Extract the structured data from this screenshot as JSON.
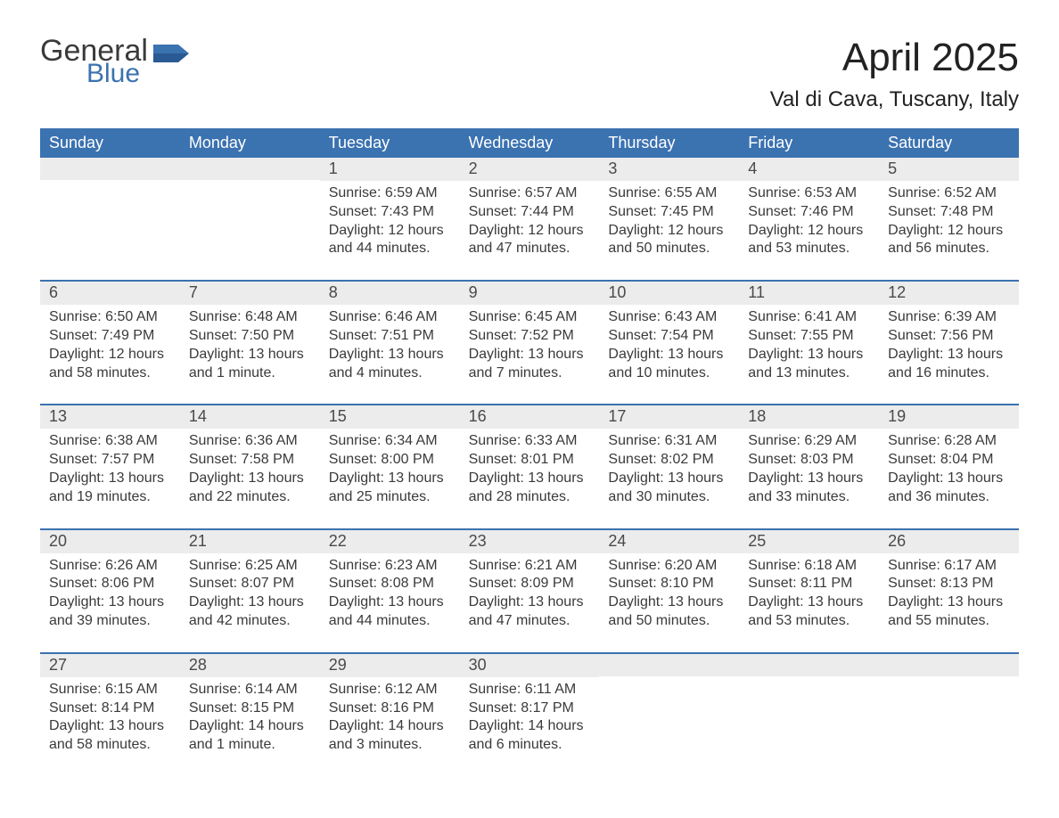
{
  "logo": {
    "line1": "General",
    "line2": "Blue"
  },
  "title": "April 2025",
  "location": "Val di Cava, Tuscany, Italy",
  "colors": {
    "header_bg": "#3b72b0",
    "header_text": "#ffffff",
    "daynum_bg": "#ececec",
    "text": "#3a3a3a",
    "border": "#3b72b0",
    "background": "#ffffff"
  },
  "weekdays": [
    "Sunday",
    "Monday",
    "Tuesday",
    "Wednesday",
    "Thursday",
    "Friday",
    "Saturday"
  ],
  "weeks": [
    [
      {
        "n": "",
        "sunrise": "",
        "sunset": "",
        "daylight": ""
      },
      {
        "n": "",
        "sunrise": "",
        "sunset": "",
        "daylight": ""
      },
      {
        "n": "1",
        "sunrise": "Sunrise: 6:59 AM",
        "sunset": "Sunset: 7:43 PM",
        "daylight": "Daylight: 12 hours and 44 minutes."
      },
      {
        "n": "2",
        "sunrise": "Sunrise: 6:57 AM",
        "sunset": "Sunset: 7:44 PM",
        "daylight": "Daylight: 12 hours and 47 minutes."
      },
      {
        "n": "3",
        "sunrise": "Sunrise: 6:55 AM",
        "sunset": "Sunset: 7:45 PM",
        "daylight": "Daylight: 12 hours and 50 minutes."
      },
      {
        "n": "4",
        "sunrise": "Sunrise: 6:53 AM",
        "sunset": "Sunset: 7:46 PM",
        "daylight": "Daylight: 12 hours and 53 minutes."
      },
      {
        "n": "5",
        "sunrise": "Sunrise: 6:52 AM",
        "sunset": "Sunset: 7:48 PM",
        "daylight": "Daylight: 12 hours and 56 minutes."
      }
    ],
    [
      {
        "n": "6",
        "sunrise": "Sunrise: 6:50 AM",
        "sunset": "Sunset: 7:49 PM",
        "daylight": "Daylight: 12 hours and 58 minutes."
      },
      {
        "n": "7",
        "sunrise": "Sunrise: 6:48 AM",
        "sunset": "Sunset: 7:50 PM",
        "daylight": "Daylight: 13 hours and 1 minute."
      },
      {
        "n": "8",
        "sunrise": "Sunrise: 6:46 AM",
        "sunset": "Sunset: 7:51 PM",
        "daylight": "Daylight: 13 hours and 4 minutes."
      },
      {
        "n": "9",
        "sunrise": "Sunrise: 6:45 AM",
        "sunset": "Sunset: 7:52 PM",
        "daylight": "Daylight: 13 hours and 7 minutes."
      },
      {
        "n": "10",
        "sunrise": "Sunrise: 6:43 AM",
        "sunset": "Sunset: 7:54 PM",
        "daylight": "Daylight: 13 hours and 10 minutes."
      },
      {
        "n": "11",
        "sunrise": "Sunrise: 6:41 AM",
        "sunset": "Sunset: 7:55 PM",
        "daylight": "Daylight: 13 hours and 13 minutes."
      },
      {
        "n": "12",
        "sunrise": "Sunrise: 6:39 AM",
        "sunset": "Sunset: 7:56 PM",
        "daylight": "Daylight: 13 hours and 16 minutes."
      }
    ],
    [
      {
        "n": "13",
        "sunrise": "Sunrise: 6:38 AM",
        "sunset": "Sunset: 7:57 PM",
        "daylight": "Daylight: 13 hours and 19 minutes."
      },
      {
        "n": "14",
        "sunrise": "Sunrise: 6:36 AM",
        "sunset": "Sunset: 7:58 PM",
        "daylight": "Daylight: 13 hours and 22 minutes."
      },
      {
        "n": "15",
        "sunrise": "Sunrise: 6:34 AM",
        "sunset": "Sunset: 8:00 PM",
        "daylight": "Daylight: 13 hours and 25 minutes."
      },
      {
        "n": "16",
        "sunrise": "Sunrise: 6:33 AM",
        "sunset": "Sunset: 8:01 PM",
        "daylight": "Daylight: 13 hours and 28 minutes."
      },
      {
        "n": "17",
        "sunrise": "Sunrise: 6:31 AM",
        "sunset": "Sunset: 8:02 PM",
        "daylight": "Daylight: 13 hours and 30 minutes."
      },
      {
        "n": "18",
        "sunrise": "Sunrise: 6:29 AM",
        "sunset": "Sunset: 8:03 PM",
        "daylight": "Daylight: 13 hours and 33 minutes."
      },
      {
        "n": "19",
        "sunrise": "Sunrise: 6:28 AM",
        "sunset": "Sunset: 8:04 PM",
        "daylight": "Daylight: 13 hours and 36 minutes."
      }
    ],
    [
      {
        "n": "20",
        "sunrise": "Sunrise: 6:26 AM",
        "sunset": "Sunset: 8:06 PM",
        "daylight": "Daylight: 13 hours and 39 minutes."
      },
      {
        "n": "21",
        "sunrise": "Sunrise: 6:25 AM",
        "sunset": "Sunset: 8:07 PM",
        "daylight": "Daylight: 13 hours and 42 minutes."
      },
      {
        "n": "22",
        "sunrise": "Sunrise: 6:23 AM",
        "sunset": "Sunset: 8:08 PM",
        "daylight": "Daylight: 13 hours and 44 minutes."
      },
      {
        "n": "23",
        "sunrise": "Sunrise: 6:21 AM",
        "sunset": "Sunset: 8:09 PM",
        "daylight": "Daylight: 13 hours and 47 minutes."
      },
      {
        "n": "24",
        "sunrise": "Sunrise: 6:20 AM",
        "sunset": "Sunset: 8:10 PM",
        "daylight": "Daylight: 13 hours and 50 minutes."
      },
      {
        "n": "25",
        "sunrise": "Sunrise: 6:18 AM",
        "sunset": "Sunset: 8:11 PM",
        "daylight": "Daylight: 13 hours and 53 minutes."
      },
      {
        "n": "26",
        "sunrise": "Sunrise: 6:17 AM",
        "sunset": "Sunset: 8:13 PM",
        "daylight": "Daylight: 13 hours and 55 minutes."
      }
    ],
    [
      {
        "n": "27",
        "sunrise": "Sunrise: 6:15 AM",
        "sunset": "Sunset: 8:14 PM",
        "daylight": "Daylight: 13 hours and 58 minutes."
      },
      {
        "n": "28",
        "sunrise": "Sunrise: 6:14 AM",
        "sunset": "Sunset: 8:15 PM",
        "daylight": "Daylight: 14 hours and 1 minute."
      },
      {
        "n": "29",
        "sunrise": "Sunrise: 6:12 AM",
        "sunset": "Sunset: 8:16 PM",
        "daylight": "Daylight: 14 hours and 3 minutes."
      },
      {
        "n": "30",
        "sunrise": "Sunrise: 6:11 AM",
        "sunset": "Sunset: 8:17 PM",
        "daylight": "Daylight: 14 hours and 6 minutes."
      },
      {
        "n": "",
        "sunrise": "",
        "sunset": "",
        "daylight": ""
      },
      {
        "n": "",
        "sunrise": "",
        "sunset": "",
        "daylight": ""
      },
      {
        "n": "",
        "sunrise": "",
        "sunset": "",
        "daylight": ""
      }
    ]
  ]
}
